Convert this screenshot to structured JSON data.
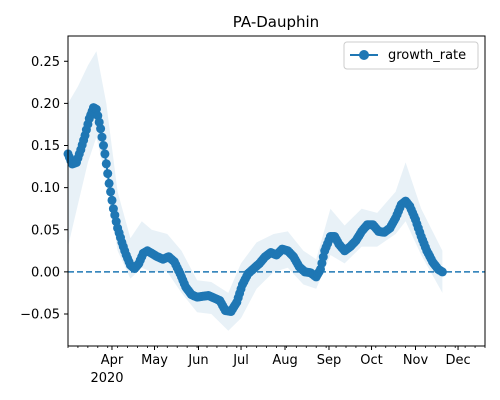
{
  "chart_data": {
    "type": "line",
    "title": "PA-Dauphin",
    "xlabel": "",
    "ylabel": "",
    "xlim": [
      "2020-03-01",
      "2020-12-20"
    ],
    "ylim": [
      -0.088,
      0.28
    ],
    "yticks": [
      -0.05,
      0.0,
      0.05,
      0.1,
      0.15,
      0.2,
      0.25
    ],
    "ytick_labels": [
      "−0.05",
      "0.00",
      "0.05",
      "0.10",
      "0.15",
      "0.20",
      "0.25"
    ],
    "xtick_labels": [
      "Apr",
      "May",
      "Jun",
      "Jul",
      "Aug",
      "Sep",
      "Oct",
      "Nov",
      "Dec"
    ],
    "xtick_dates": [
      "2020-04-01",
      "2020-05-01",
      "2020-06-01",
      "2020-07-01",
      "2020-08-01",
      "2020-09-01",
      "2020-10-01",
      "2020-11-01",
      "2020-12-01"
    ],
    "year_label": "2020",
    "legend": {
      "position": "upper right",
      "label": "growth_rate"
    },
    "grid": false,
    "reference_line": {
      "y": 0,
      "style": "dashed"
    },
    "colors": {
      "line": "#1f77b4",
      "band": "#1f77b4",
      "reference": "#1f77b4"
    },
    "series": [
      {
        "name": "growth_rate",
        "points": [
          [
            "2020-03-01",
            0.14
          ],
          [
            "2020-03-04",
            0.128
          ],
          [
            "2020-03-07",
            0.13
          ],
          [
            "2020-03-10",
            0.145
          ],
          [
            "2020-03-13",
            0.162
          ],
          [
            "2020-03-16",
            0.182
          ],
          [
            "2020-03-19",
            0.195
          ],
          [
            "2020-03-21",
            0.193
          ],
          [
            "2020-03-24",
            0.17
          ],
          [
            "2020-03-27",
            0.14
          ],
          [
            "2020-03-30",
            0.105
          ],
          [
            "2020-04-02",
            0.075
          ],
          [
            "2020-04-05",
            0.052
          ],
          [
            "2020-04-08",
            0.035
          ],
          [
            "2020-04-11",
            0.02
          ],
          [
            "2020-04-14",
            0.008
          ],
          [
            "2020-04-17",
            0.004
          ],
          [
            "2020-04-20",
            0.01
          ],
          [
            "2020-04-23",
            0.022
          ],
          [
            "2020-04-26",
            0.025
          ],
          [
            "2020-04-29",
            0.022
          ],
          [
            "2020-05-03",
            0.018
          ],
          [
            "2020-05-07",
            0.015
          ],
          [
            "2020-05-11",
            0.018
          ],
          [
            "2020-05-15",
            0.012
          ],
          [
            "2020-05-19",
            -0.002
          ],
          [
            "2020-05-23",
            -0.018
          ],
          [
            "2020-05-27",
            -0.027
          ],
          [
            "2020-05-31",
            -0.03
          ],
          [
            "2020-06-04",
            -0.029
          ],
          [
            "2020-06-08",
            -0.028
          ],
          [
            "2020-06-12",
            -0.031
          ],
          [
            "2020-06-16",
            -0.034
          ],
          [
            "2020-06-20",
            -0.046
          ],
          [
            "2020-06-24",
            -0.047
          ],
          [
            "2020-06-28",
            -0.036
          ],
          [
            "2020-07-02",
            -0.015
          ],
          [
            "2020-07-06",
            -0.002
          ],
          [
            "2020-07-10",
            0.004
          ],
          [
            "2020-07-14",
            0.01
          ],
          [
            "2020-07-18",
            0.018
          ],
          [
            "2020-07-22",
            0.023
          ],
          [
            "2020-07-26",
            0.02
          ],
          [
            "2020-07-30",
            0.027
          ],
          [
            "2020-08-03",
            0.025
          ],
          [
            "2020-08-07",
            0.018
          ],
          [
            "2020-08-11",
            0.006
          ],
          [
            "2020-08-15",
            0.0
          ],
          [
            "2020-08-19",
            -0.001
          ],
          [
            "2020-08-23",
            -0.006
          ],
          [
            "2020-08-26",
            0.003
          ],
          [
            "2020-08-29",
            0.025
          ],
          [
            "2020-09-02",
            0.042
          ],
          [
            "2020-09-05",
            0.042
          ],
          [
            "2020-09-08",
            0.033
          ],
          [
            "2020-09-12",
            0.025
          ],
          [
            "2020-09-16",
            0.03
          ],
          [
            "2020-09-20",
            0.037
          ],
          [
            "2020-09-24",
            0.048
          ],
          [
            "2020-09-28",
            0.056
          ],
          [
            "2020-10-02",
            0.056
          ],
          [
            "2020-10-06",
            0.048
          ],
          [
            "2020-10-10",
            0.047
          ],
          [
            "2020-10-14",
            0.052
          ],
          [
            "2020-10-18",
            0.064
          ],
          [
            "2020-10-22",
            0.08
          ],
          [
            "2020-10-25",
            0.084
          ],
          [
            "2020-10-28",
            0.078
          ],
          [
            "2020-11-01",
            0.062
          ],
          [
            "2020-11-05",
            0.042
          ],
          [
            "2020-11-09",
            0.025
          ],
          [
            "2020-11-13",
            0.012
          ],
          [
            "2020-11-17",
            0.003
          ],
          [
            "2020-11-20",
            0.0
          ]
        ],
        "band": [
          [
            "2020-03-01",
            0.03,
            0.2
          ],
          [
            "2020-03-08",
            0.08,
            0.22
          ],
          [
            "2020-03-15",
            0.13,
            0.245
          ],
          [
            "2020-03-21",
            0.16,
            0.262
          ],
          [
            "2020-03-28",
            0.11,
            0.2
          ],
          [
            "2020-04-05",
            0.025,
            0.095
          ],
          [
            "2020-04-14",
            -0.008,
            0.04
          ],
          [
            "2020-04-22",
            0.005,
            0.06
          ],
          [
            "2020-04-29",
            0.0,
            0.05
          ],
          [
            "2020-05-10",
            0.0,
            0.045
          ],
          [
            "2020-05-20",
            -0.025,
            0.025
          ],
          [
            "2020-05-31",
            -0.048,
            -0.01
          ],
          [
            "2020-06-10",
            -0.05,
            -0.012
          ],
          [
            "2020-06-22",
            -0.07,
            -0.025
          ],
          [
            "2020-07-01",
            -0.055,
            0.01
          ],
          [
            "2020-07-12",
            -0.02,
            0.035
          ],
          [
            "2020-07-24",
            0.0,
            0.045
          ],
          [
            "2020-08-03",
            0.005,
            0.048
          ],
          [
            "2020-08-14",
            -0.015,
            0.025
          ],
          [
            "2020-08-23",
            -0.02,
            0.015
          ],
          [
            "2020-09-02",
            0.02,
            0.075
          ],
          [
            "2020-09-12",
            0.01,
            0.055
          ],
          [
            "2020-09-24",
            0.03,
            0.075
          ],
          [
            "2020-10-05",
            0.03,
            0.07
          ],
          [
            "2020-10-18",
            0.045,
            0.095
          ],
          [
            "2020-10-25",
            0.06,
            0.13
          ],
          [
            "2020-11-05",
            0.02,
            0.075
          ],
          [
            "2020-11-20",
            -0.025,
            0.025
          ]
        ]
      }
    ]
  }
}
